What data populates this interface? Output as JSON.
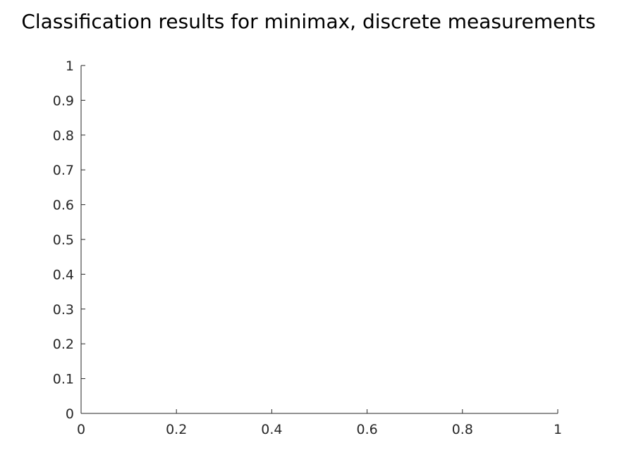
{
  "chart_data": {
    "type": "scatter",
    "title": "Classification results for minimax, discrete measurements",
    "xlabel": "",
    "ylabel": "",
    "xlim": [
      0,
      1
    ],
    "ylim": [
      0,
      1
    ],
    "x_ticks": [
      0,
      0.2,
      0.4,
      0.6,
      0.8,
      1
    ],
    "x_tick_labels": [
      "0",
      "0.2",
      "0.4",
      "0.6",
      "0.8",
      "1"
    ],
    "y_ticks": [
      0,
      0.1,
      0.2,
      0.3,
      0.4,
      0.5,
      0.6,
      0.7,
      0.8,
      0.9,
      1
    ],
    "y_tick_labels": [
      "0",
      "0.1",
      "0.2",
      "0.3",
      "0.4",
      "0.5",
      "0.6",
      "0.7",
      "0.8",
      "0.9",
      "1"
    ],
    "grid": false,
    "series": [],
    "axis_color": "#262626"
  }
}
